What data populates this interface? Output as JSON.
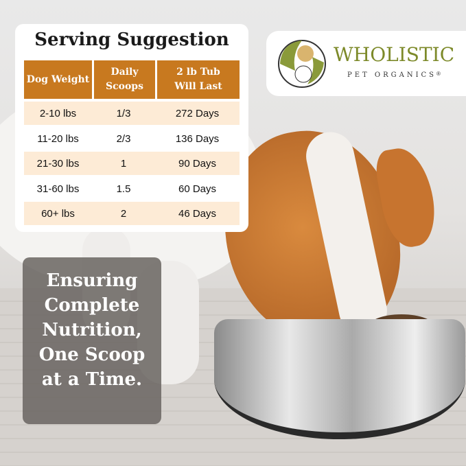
{
  "serving_card": {
    "title": "Serving Suggestion",
    "columns": [
      "Dog Weight",
      "Daily Scoops",
      "2 lb Tub Will Last"
    ],
    "rows": [
      [
        "2-10 lbs",
        "1/3",
        "272 Days"
      ],
      [
        "11-20 lbs",
        "2/3",
        "136 Days"
      ],
      [
        "21-30 lbs",
        "1",
        "90 Days"
      ],
      [
        "31-60 lbs",
        "1.5",
        "60 Days"
      ],
      [
        "60+ lbs",
        "2",
        "46 Days"
      ]
    ],
    "header_color": "#c8791f",
    "alt_row_color": "#fdebd6"
  },
  "logo": {
    "brand": "WHOLISTIC",
    "sub": "PET ORGANICS",
    "mark": "®",
    "color": "#7d8a2a"
  },
  "tagline": {
    "lines": [
      "Ensuring",
      "Complete",
      "Nutrition,",
      "One Scoop",
      "at a Time."
    ]
  }
}
